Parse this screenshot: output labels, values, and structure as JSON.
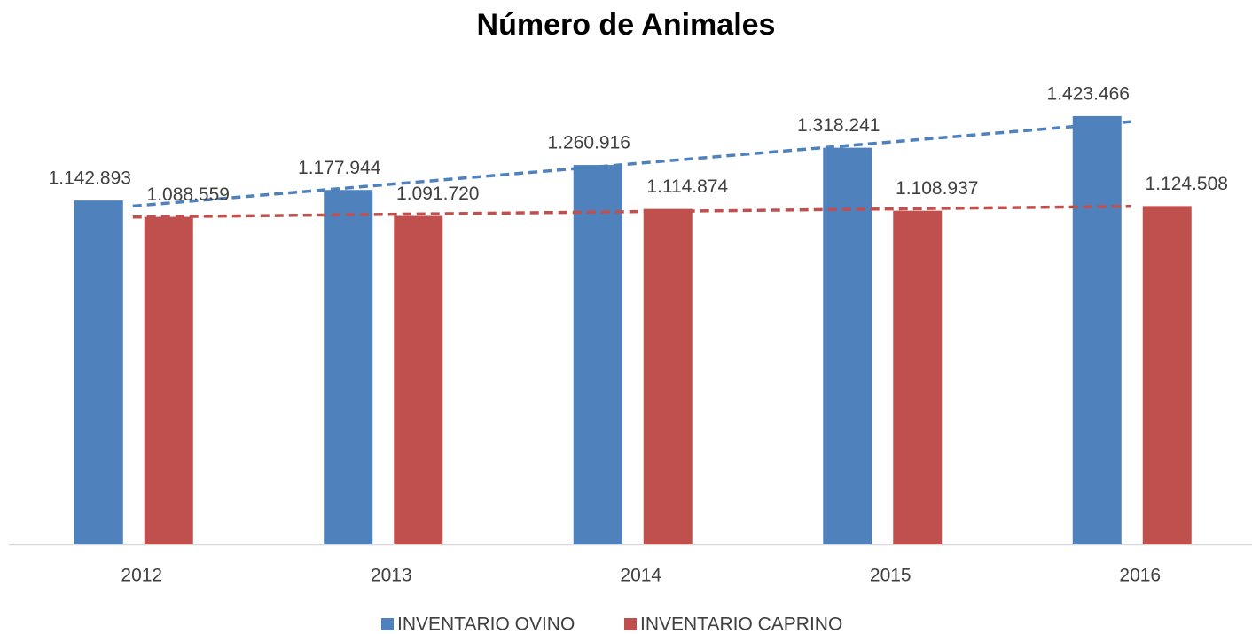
{
  "chart_data": {
    "type": "bar",
    "title": "Número de Animales",
    "categories": [
      "2012",
      "2013",
      "2014",
      "2015",
      "2016"
    ],
    "series": [
      {
        "name": "INVENTARIO OVINO",
        "color": "#4f81bd",
        "values": [
          1142893,
          1177944,
          1260916,
          1318241,
          1423466
        ],
        "value_labels": [
          "1.142.893",
          "1.177.944",
          "1.260.916",
          "1.318.241",
          "1.423.466"
        ]
      },
      {
        "name": "INVENTARIO CAPRINO",
        "color": "#c0504d",
        "values": [
          1088559,
          1091720,
          1114874,
          1108937,
          1124508
        ],
        "value_labels": [
          "1.088.559",
          "1.091.720",
          "1.114.874",
          "1.108.937",
          "1.124.508"
        ]
      }
    ],
    "ylim": [
      0,
      1600000
    ],
    "trendline": "linear",
    "legend": "bottom"
  }
}
